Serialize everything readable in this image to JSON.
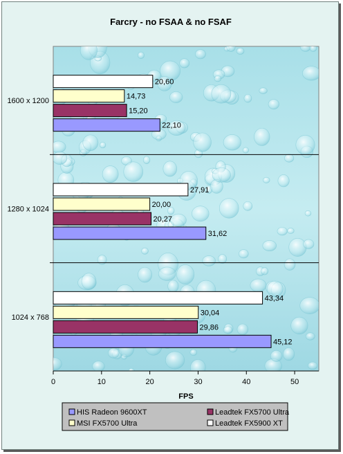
{
  "chart_data": {
    "type": "bar",
    "orientation": "horizontal",
    "title": "Farcry - no FSAA & no FSAF",
    "xlabel": "FPS",
    "ylabel": "",
    "xlim": [
      0,
      55
    ],
    "xticks": [
      "0",
      "10",
      "20",
      "30",
      "40",
      "50"
    ],
    "categories": [
      "1600 x 1200",
      "1280 x 1024",
      "1024 x 768"
    ],
    "series": [
      {
        "name": "HIS Radeon 9600XT",
        "color": "#9999ff",
        "values": [
          22.1,
          31.62,
          45.12
        ],
        "labels": [
          "22,10",
          "31,62",
          "45,12"
        ]
      },
      {
        "name": "Leadtek FX5700 Ultra",
        "color": "#993366",
        "values": [
          15.2,
          20.27,
          29.86
        ],
        "labels": [
          "15,20",
          "20,27",
          "29,86"
        ]
      },
      {
        "name": "MSI FX5700 Ultra",
        "color": "#ffffcc",
        "values": [
          14.73,
          20.0,
          30.04
        ],
        "labels": [
          "14,73",
          "20,00",
          "30,04"
        ]
      },
      {
        "name": "Leadtek FX5900 XT",
        "color": "#ffffff",
        "values": [
          20.6,
          27.91,
          43.34
        ],
        "labels": [
          "20,60",
          "27,91",
          "43,34"
        ]
      }
    ],
    "legend_position": "bottom",
    "background": "water-droplet texture"
  }
}
